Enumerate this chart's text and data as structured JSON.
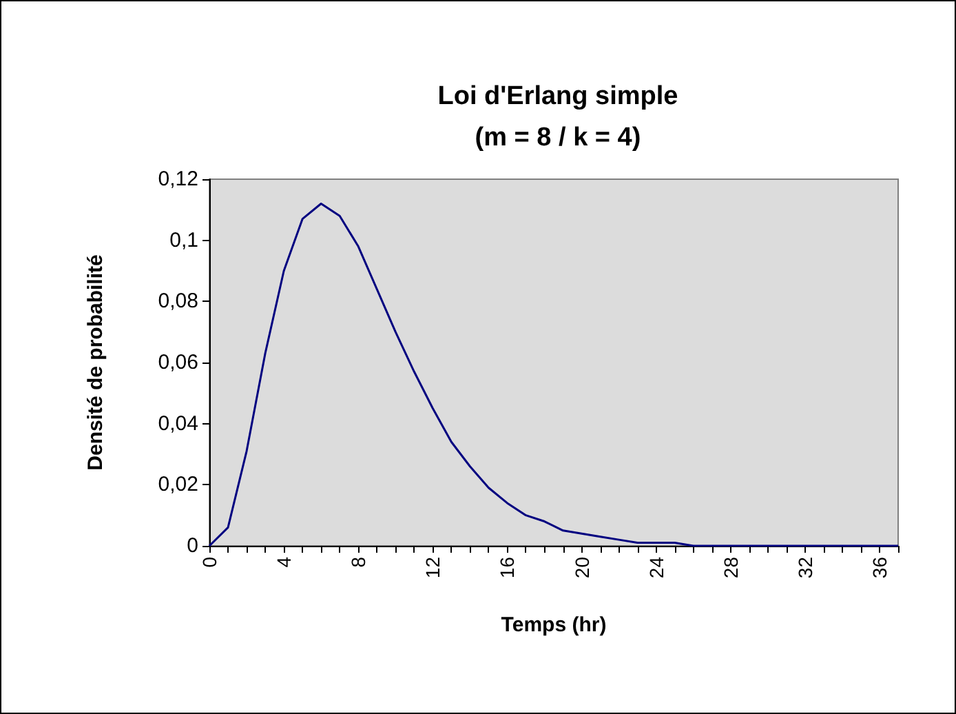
{
  "chart_data": {
    "type": "line",
    "title": "Loi d'Erlang simple\n(m = 8 / k = 4)",
    "xlabel": "Temps (hr)",
    "ylabel": "Densité de probabilité",
    "categories": [
      "0",
      null,
      null,
      null,
      "4",
      null,
      null,
      null,
      "8",
      null,
      null,
      null,
      "12",
      null,
      null,
      null,
      "16",
      null,
      null,
      null,
      "20",
      null,
      null,
      null,
      "24",
      null,
      null,
      null,
      "28",
      null,
      null,
      null,
      "32",
      null,
      null,
      null,
      "36",
      null
    ],
    "series": [
      {
        "color": "#000080",
        "values": [
          0,
          0.006,
          0.031,
          0.063,
          0.09,
          0.107,
          0.112,
          0.108,
          0.098,
          0.084,
          0.07,
          0.057,
          0.045,
          0.034,
          0.026,
          0.019,
          0.014,
          0.01,
          0.008,
          0.005,
          0.004,
          0.003,
          0.002,
          0.001,
          0.001,
          0.001,
          0,
          0,
          0,
          0,
          0,
          0,
          0,
          0,
          0,
          0,
          0,
          0
        ]
      }
    ],
    "ylim": [
      0,
      0.12
    ],
    "yticks": [
      0,
      {
        "value": 0.02,
        "label": "0,02"
      },
      {
        "value": 0.04,
        "label": "0,04"
      },
      {
        "value": 0.06,
        "label": "0,06"
      },
      {
        "value": 0.08,
        "label": "0,08"
      },
      {
        "value": 0.1,
        "label": "0,1"
      },
      {
        "value": 0.12,
        "label": "0,12"
      }
    ],
    "grid": false,
    "marker": "none",
    "line_style": "solid"
  }
}
